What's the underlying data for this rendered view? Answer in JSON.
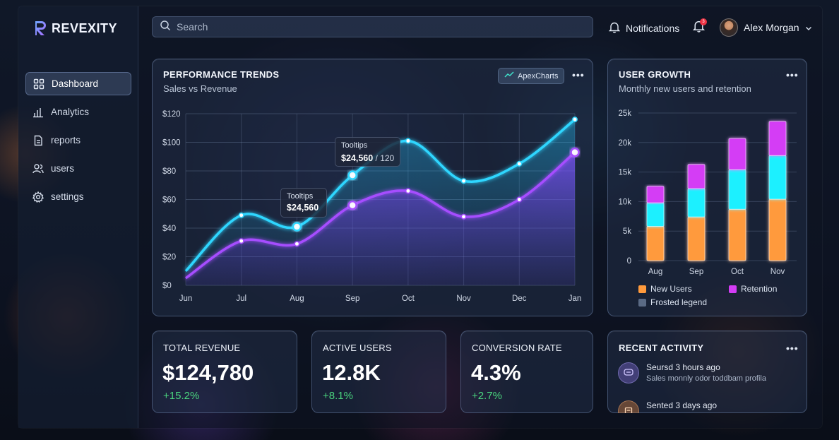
{
  "brand": {
    "name": "REVEXITY"
  },
  "sidebar": {
    "items": [
      {
        "label": "Dashboard",
        "icon": "grid-icon",
        "active": true
      },
      {
        "label": "Analytics",
        "icon": "bar-chart-icon",
        "active": false
      },
      {
        "label": "reports",
        "icon": "document-icon",
        "active": false
      },
      {
        "label": "users",
        "icon": "users-icon",
        "active": false
      },
      {
        "label": "settings",
        "icon": "gear-icon",
        "active": false
      }
    ]
  },
  "header": {
    "search_placeholder": "Search",
    "notifications_label": "Notifications",
    "notification_badge": "3",
    "user_name": "Alex Morgan"
  },
  "performance": {
    "title": "PERFORMANCE TRENDS",
    "subtitle": "Sales vs Revenue",
    "chip_label": "ApexCharts",
    "tooltip1": {
      "label": "Tooltips",
      "value": "$24,560"
    },
    "tooltip2": {
      "label": "Tooltips",
      "value": "$24,560",
      "extra": " / 120"
    }
  },
  "growth": {
    "title": "USER GROWTH",
    "subtitle": "Monthly new users and retention",
    "legend": [
      {
        "label": "New Users",
        "color": "#ff9a3c"
      },
      {
        "label": "Retention",
        "color": "#d43cf5"
      },
      {
        "label": "Frosted legend",
        "color": "#5a6a84"
      }
    ]
  },
  "kpis": [
    {
      "label": "TOTAL REVENUE",
      "value": "$124,780",
      "delta": "+15.2%"
    },
    {
      "label": "ACTIVE USERS",
      "value": "12.8K",
      "delta": "+8.1%"
    },
    {
      "label": "CONVERSION RATE",
      "value": "4.3%",
      "delta": "+2.7%"
    }
  ],
  "activity": {
    "title": "RECENT ACTIVITY",
    "items": [
      {
        "title": "Seursd 3 hours ago",
        "sub": "Sales monnly odor toddbam profila"
      },
      {
        "title": "Sented 3 days ago",
        "sub": ""
      }
    ]
  },
  "chart_data": [
    {
      "type": "line",
      "x": [
        "Jun",
        "Jul",
        "Aug",
        "Sep",
        "Oct",
        "Nov",
        "Dec",
        "Jan"
      ],
      "series": [
        {
          "values": [
            10,
            49,
            41,
            77,
            101,
            73,
            85,
            116
          ],
          "color": "#2fd6ff"
        },
        {
          "values": [
            5,
            31,
            29,
            56,
            66,
            48,
            60,
            93
          ],
          "color": "#a64dff"
        }
      ],
      "yticks": [
        "$0",
        "$20",
        "$40",
        "$60",
        "$80",
        "$100",
        "$120"
      ],
      "ylim": [
        0,
        120
      ],
      "grid": true
    },
    {
      "type": "bar",
      "stacked": true,
      "categories": [
        "Aug",
        "Sep",
        "Oct",
        "Nov"
      ],
      "series": [
        {
          "name": "New Users",
          "values": [
            5800,
            7400,
            8700,
            10400
          ],
          "color": "#ff9a3c"
        },
        {
          "values": [
            4000,
            4800,
            6700,
            7400
          ],
          "color": "#1ff0ff"
        },
        {
          "name": "Retention",
          "values": [
            2800,
            4100,
            5300,
            5800
          ],
          "color": "#d43cf5"
        }
      ],
      "yticks": [
        "0",
        "5k",
        "10k",
        "15k",
        "20k",
        "25k"
      ],
      "ylim": [
        0,
        25000
      ],
      "grid": true,
      "legend": "bottom"
    }
  ]
}
